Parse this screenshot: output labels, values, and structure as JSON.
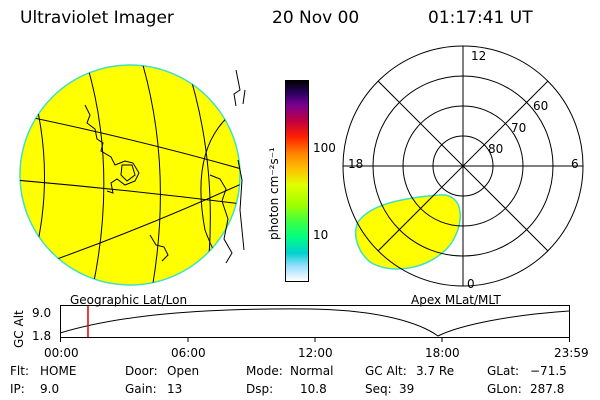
{
  "header": {
    "instrument": "Ultraviolet Imager",
    "date": "20 Nov 00",
    "time": "01:17:41 UT"
  },
  "colorbar": {
    "unit_label": "photon cm⁻²s⁻¹",
    "tick_100": "100",
    "tick_10": "10"
  },
  "polar": {
    "lat_labels": [
      "60",
      "70",
      "80"
    ],
    "mlt_labels": {
      "top": "12",
      "left": "18",
      "right": "6",
      "bottom": "0"
    }
  },
  "timeline": {
    "left_title": "Geographic Lat/Lon",
    "right_title": "Apex MLat/MLT",
    "axis_label": "GC Alt",
    "y_max": "9.0",
    "y_min": "1.8",
    "time_ticks": [
      "00:00",
      "06:00",
      "12:00",
      "18:00",
      "23:59"
    ],
    "current_time_fraction": 0.054
  },
  "info": {
    "flt_label": "Flt:",
    "flt_value": "HOME",
    "ip_label": "IP:",
    "ip_value": "9.0",
    "door_label": "Door:",
    "door_value": "Open",
    "gain_label": "Gain:",
    "gain_value": "13",
    "mode_label": "Mode:",
    "mode_value": "Normal",
    "dsp_label": "Dsp:",
    "dsp_value": "10.8",
    "gcalt_label": "GC Alt:",
    "gcalt_value": "3.7 Re",
    "seq_label": "Seq:",
    "seq_value": "39",
    "glat_label": "GLat:",
    "glat_value": "−71.5",
    "glon_label": "GLon:",
    "glon_value": "287.8"
  },
  "colors": {
    "aurora_fill": "#ffff00",
    "aurora_edge": "#40e0c0",
    "marker": "#e00000"
  }
}
